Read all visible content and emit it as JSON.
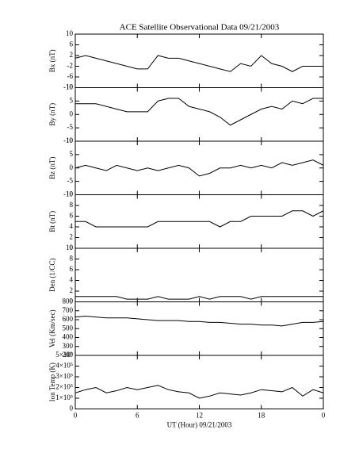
{
  "chart_data": [
    {
      "type": "line",
      "title": "ACE Satellite Observational Data  09/21/2003",
      "ylabel": "Bx (nT)",
      "color": "#000000",
      "x": [
        0,
        1,
        2,
        3,
        4,
        5,
        6,
        7,
        8,
        9,
        10,
        11,
        12,
        13,
        14,
        15,
        16,
        17,
        18,
        19,
        20,
        21,
        22,
        23,
        24
      ],
      "values": [
        1,
        2,
        1,
        0,
        -1,
        -2,
        -3,
        -3,
        2,
        1,
        1,
        0,
        -1,
        -2,
        -3,
        -4,
        -1,
        -2,
        2,
        -1,
        -2,
        -4,
        -2,
        -2,
        -2
      ],
      "ylim": [
        -10,
        10
      ],
      "yticks": [
        -10,
        -6,
        -2,
        2,
        6,
        10
      ],
      "xlim": [
        0,
        24
      ]
    },
    {
      "type": "line",
      "ylabel": "By (nT)",
      "color": "#000000",
      "x": [
        0,
        1,
        2,
        3,
        4,
        5,
        6,
        7,
        8,
        9,
        10,
        11,
        12,
        13,
        14,
        15,
        16,
        17,
        18,
        19,
        20,
        21,
        22,
        23,
        24
      ],
      "values": [
        4,
        4,
        4,
        3,
        2,
        1,
        1,
        1,
        5,
        6,
        6,
        3,
        2,
        1,
        -1,
        -4,
        -2,
        0,
        2,
        3,
        2,
        5,
        4,
        6,
        6
      ],
      "ylim": [
        -10,
        10
      ],
      "yticks": [
        -10,
        -5,
        0,
        5,
        10
      ],
      "xlim": [
        0,
        24
      ]
    },
    {
      "type": "line",
      "ylabel": "Bz (nT)",
      "color": "#000000",
      "x": [
        0,
        1,
        2,
        3,
        4,
        5,
        6,
        7,
        8,
        9,
        10,
        11,
        12,
        13,
        14,
        15,
        16,
        17,
        18,
        19,
        20,
        21,
        22,
        23,
        24
      ],
      "values": [
        0,
        1,
        0,
        -1,
        1,
        0,
        -1,
        0,
        -1,
        0,
        1,
        0,
        -3,
        -2,
        0,
        0,
        1,
        0,
        1,
        0,
        2,
        1,
        2,
        3,
        1
      ],
      "ylim": [
        -10,
        10
      ],
      "yticks": [
        -10,
        -5,
        0,
        5,
        10
      ],
      "xlim": [
        0,
        24
      ]
    },
    {
      "type": "line",
      "ylabel": "Bt (nT)",
      "color": "#000000",
      "x": [
        0,
        1,
        2,
        3,
        4,
        5,
        6,
        7,
        8,
        9,
        10,
        11,
        12,
        13,
        14,
        15,
        16,
        17,
        18,
        19,
        20,
        21,
        22,
        23,
        24
      ],
      "values": [
        5,
        5,
        4,
        4,
        4,
        4,
        4,
        4,
        5,
        5,
        5,
        5,
        5,
        5,
        4,
        5,
        5,
        6,
        6,
        6,
        6,
        7,
        7,
        6,
        7
      ],
      "ylim": [
        0,
        10
      ],
      "yticks": [
        0,
        2,
        4,
        6,
        8,
        10
      ],
      "xlim": [
        0,
        24
      ]
    },
    {
      "type": "line",
      "ylabel": "Den (1/CC)",
      "color": "#000000",
      "x": [
        0,
        1,
        2,
        3,
        4,
        5,
        6,
        7,
        8,
        9,
        10,
        11,
        12,
        13,
        14,
        15,
        16,
        17,
        18,
        19,
        20,
        21,
        22,
        23,
        24
      ],
      "values": [
        1,
        1,
        1,
        1,
        1,
        0.5,
        0.5,
        0.5,
        1,
        0.5,
        0.5,
        0.5,
        1,
        0.5,
        1,
        1,
        1,
        0.5,
        1,
        1,
        1,
        1,
        1,
        1,
        1
      ],
      "ylim": [
        0,
        10
      ],
      "yticks": [
        0,
        2,
        4,
        6,
        8,
        10
      ],
      "xlim": [
        0,
        24
      ]
    },
    {
      "type": "line",
      "ylabel": "Vel (Km/sec)",
      "color": "#000000",
      "x": [
        0,
        1,
        2,
        3,
        4,
        5,
        6,
        7,
        8,
        9,
        10,
        11,
        12,
        13,
        14,
        15,
        16,
        17,
        18,
        19,
        20,
        21,
        22,
        23,
        24
      ],
      "values": [
        630,
        640,
        630,
        620,
        620,
        620,
        610,
        600,
        590,
        590,
        590,
        580,
        580,
        570,
        570,
        560,
        550,
        550,
        540,
        540,
        530,
        550,
        570,
        570,
        580
      ],
      "ylim": [
        200,
        800
      ],
      "yticks": [
        200,
        300,
        400,
        500,
        600,
        700,
        800
      ],
      "xlim": [
        0,
        24
      ]
    },
    {
      "type": "line",
      "ylabel": "Ion Temp (K)",
      "color": "#000000",
      "x": [
        0,
        1,
        2,
        3,
        4,
        5,
        6,
        7,
        8,
        9,
        10,
        11,
        12,
        13,
        14,
        15,
        16,
        17,
        18,
        19,
        20,
        21,
        22,
        23,
        24
      ],
      "values": [
        150000,
        180000,
        200000,
        150000,
        170000,
        200000,
        180000,
        200000,
        220000,
        180000,
        160000,
        150000,
        100000,
        120000,
        150000,
        140000,
        130000,
        150000,
        180000,
        170000,
        160000,
        200000,
        120000,
        180000,
        150000
      ],
      "ylim": [
        0,
        500000
      ],
      "yticks": [
        0,
        {
          "value": 100000,
          "label": "1×10⁵"
        },
        {
          "value": 200000,
          "label": "2×10⁵"
        },
        {
          "value": 300000,
          "label": "3×10⁵"
        },
        {
          "value": 400000,
          "label": "4×10⁵"
        },
        {
          "value": 500000,
          "label": "5×10⁵"
        }
      ],
      "xlim": [
        0,
        24
      ],
      "xticks": [
        0,
        6,
        12,
        18,
        {
          "value": 24,
          "label": "0"
        }
      ],
      "xlabel": "UT (Hour)  09/21/2003"
    }
  ]
}
